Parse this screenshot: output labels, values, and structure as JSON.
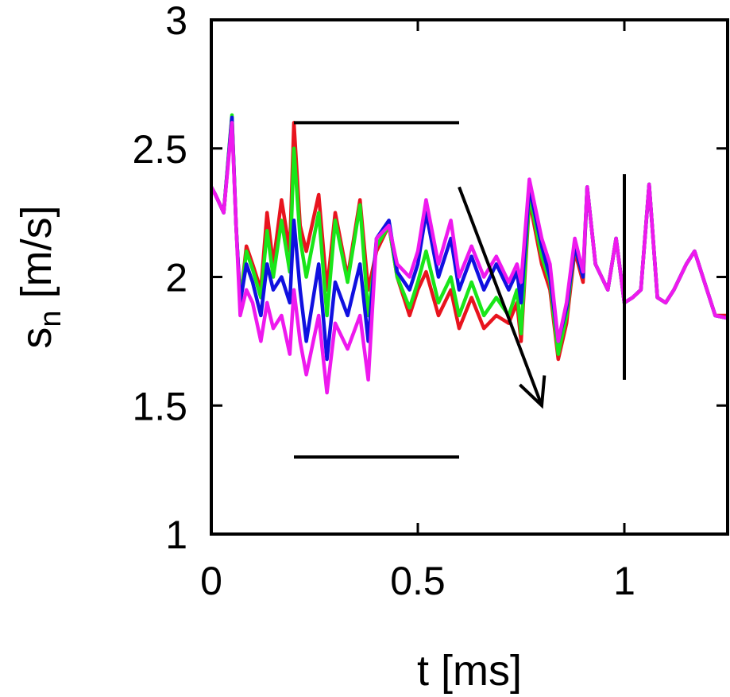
{
  "chart_data": {
    "type": "line",
    "xlabel": "t [ms]",
    "ylabel": {
      "main": "s",
      "subscript": "n",
      "unit": " [m/s]"
    },
    "xlim": [
      0,
      1.25
    ],
    "ylim": [
      1,
      3
    ],
    "xticks": [
      {
        "value": 0,
        "label": "0"
      },
      {
        "value": 0.5,
        "label": "0.5"
      },
      {
        "value": 1,
        "label": "1"
      }
    ],
    "yticks": [
      {
        "value": 1,
        "label": "1"
      },
      {
        "value": 1.5,
        "label": "1.5"
      },
      {
        "value": 2,
        "label": "2"
      },
      {
        "value": 2.5,
        "label": "2.5"
      },
      {
        "value": 3,
        "label": "3"
      }
    ],
    "grid": false,
    "legend": "none",
    "series": [
      {
        "color": "#e8141e",
        "x": [
          0,
          0.01,
          0.03,
          0.05,
          0.06,
          0.07,
          0.085,
          0.1,
          0.12,
          0.135,
          0.15,
          0.17,
          0.19,
          0.2,
          0.215,
          0.23,
          0.26,
          0.28,
          0.3,
          0.33,
          0.36,
          0.38,
          0.4,
          0.43,
          0.45,
          0.48,
          0.5,
          0.52,
          0.55,
          0.58,
          0.6,
          0.63,
          0.66,
          0.69,
          0.72,
          0.74,
          0.75,
          0.77,
          0.8,
          0.82,
          0.84,
          0.86,
          0.88,
          0.9,
          0.91,
          0.93,
          0.96,
          0.98,
          1.0,
          1.02,
          1.04,
          1.06,
          1.08,
          1.1,
          1.12,
          1.15,
          1.17,
          1.2,
          1.22,
          1.25
        ],
        "y": [
          2.35,
          2.32,
          2.25,
          2.62,
          2.2,
          1.9,
          2.12,
          2.05,
          1.95,
          2.25,
          2.05,
          2.3,
          2.1,
          2.6,
          2.2,
          2.1,
          2.32,
          1.95,
          2.25,
          2.0,
          2.3,
          1.95,
          2.1,
          2.2,
          2.0,
          1.85,
          1.95,
          2.02,
          1.85,
          1.95,
          1.8,
          1.92,
          1.8,
          1.85,
          1.82,
          1.9,
          1.75,
          2.3,
          2.05,
          1.95,
          1.68,
          1.82,
          2.1,
          1.98,
          2.35,
          2.05,
          1.95,
          2.15,
          1.9,
          1.92,
          1.95,
          2.36,
          1.92,
          1.9,
          1.95,
          2.05,
          2.1,
          1.95,
          1.85,
          1.85
        ]
      },
      {
        "color": "#19e619",
        "x": [
          0,
          0.01,
          0.03,
          0.05,
          0.06,
          0.07,
          0.085,
          0.1,
          0.12,
          0.135,
          0.15,
          0.17,
          0.19,
          0.2,
          0.215,
          0.23,
          0.26,
          0.28,
          0.3,
          0.33,
          0.36,
          0.38,
          0.4,
          0.43,
          0.45,
          0.48,
          0.5,
          0.52,
          0.55,
          0.58,
          0.6,
          0.63,
          0.66,
          0.69,
          0.72,
          0.74,
          0.75,
          0.77,
          0.8,
          0.82,
          0.84,
          0.86,
          0.88,
          0.9,
          0.91,
          0.93,
          0.96,
          0.98,
          1.0,
          1.02,
          1.04,
          1.06,
          1.08,
          1.1,
          1.12,
          1.15,
          1.17,
          1.2,
          1.22,
          1.25
        ],
        "y": [
          2.35,
          2.32,
          2.25,
          2.63,
          2.2,
          1.9,
          2.1,
          2.03,
          1.92,
          2.18,
          2.0,
          2.22,
          2.02,
          2.5,
          2.15,
          2.0,
          2.25,
          1.85,
          2.22,
          1.98,
          2.28,
          1.85,
          2.12,
          2.2,
          2.0,
          1.88,
          1.98,
          2.1,
          1.9,
          2.0,
          1.85,
          1.98,
          1.85,
          1.92,
          1.85,
          1.95,
          1.78,
          2.32,
          2.08,
          1.98,
          1.7,
          1.85,
          2.12,
          2.0,
          2.35,
          2.05,
          1.95,
          2.15,
          1.9,
          1.92,
          1.95,
          2.36,
          1.92,
          1.9,
          1.95,
          2.05,
          2.1,
          1.95,
          1.85,
          1.84
        ]
      },
      {
        "color": "#1010e0",
        "x": [
          0,
          0.01,
          0.03,
          0.05,
          0.06,
          0.07,
          0.085,
          0.1,
          0.12,
          0.135,
          0.15,
          0.17,
          0.19,
          0.2,
          0.215,
          0.23,
          0.26,
          0.28,
          0.3,
          0.33,
          0.36,
          0.38,
          0.4,
          0.43,
          0.45,
          0.48,
          0.5,
          0.52,
          0.55,
          0.58,
          0.6,
          0.63,
          0.66,
          0.69,
          0.72,
          0.74,
          0.75,
          0.77,
          0.8,
          0.82,
          0.84,
          0.86,
          0.88,
          0.9,
          0.91,
          0.93,
          0.96,
          0.98,
          1.0,
          1.02,
          1.04,
          1.06,
          1.08,
          1.1,
          1.12,
          1.15,
          1.17,
          1.2,
          1.22,
          1.25
        ],
        "y": [
          2.35,
          2.32,
          2.25,
          2.62,
          2.2,
          1.9,
          2.05,
          1.98,
          1.85,
          2.05,
          1.95,
          2.0,
          1.9,
          2.22,
          1.95,
          1.75,
          2.05,
          1.68,
          1.98,
          1.85,
          2.05,
          1.75,
          2.15,
          2.22,
          2.02,
          1.95,
          2.05,
          2.25,
          2.0,
          2.15,
          1.95,
          2.08,
          1.95,
          2.05,
          1.95,
          2.02,
          1.9,
          2.35,
          2.12,
          2.0,
          1.75,
          1.88,
          2.12,
          2.0,
          2.35,
          2.05,
          1.95,
          2.15,
          1.9,
          1.92,
          1.95,
          2.36,
          1.92,
          1.9,
          1.95,
          2.05,
          2.1,
          1.95,
          1.85,
          1.84
        ]
      },
      {
        "color": "#ee19ee",
        "x": [
          0,
          0.01,
          0.03,
          0.05,
          0.06,
          0.07,
          0.085,
          0.1,
          0.12,
          0.135,
          0.15,
          0.17,
          0.19,
          0.2,
          0.215,
          0.23,
          0.26,
          0.28,
          0.3,
          0.33,
          0.36,
          0.38,
          0.4,
          0.43,
          0.45,
          0.48,
          0.5,
          0.52,
          0.55,
          0.58,
          0.6,
          0.63,
          0.66,
          0.69,
          0.72,
          0.74,
          0.75,
          0.77,
          0.8,
          0.82,
          0.84,
          0.86,
          0.88,
          0.9,
          0.91,
          0.93,
          0.96,
          0.98,
          1.0,
          1.02,
          1.04,
          1.06,
          1.08,
          1.1,
          1.12,
          1.15,
          1.17,
          1.2,
          1.22,
          1.25
        ],
        "y": [
          2.35,
          2.32,
          2.25,
          2.6,
          2.2,
          1.85,
          1.95,
          1.9,
          1.75,
          1.9,
          1.8,
          1.85,
          1.7,
          1.95,
          1.75,
          1.62,
          1.85,
          1.55,
          1.82,
          1.72,
          1.85,
          1.6,
          2.15,
          2.2,
          2.05,
          2.0,
          2.1,
          2.3,
          2.05,
          2.22,
          2.0,
          2.12,
          2.0,
          2.08,
          1.98,
          2.05,
          1.98,
          2.38,
          2.15,
          2.05,
          1.75,
          1.9,
          2.15,
          2.02,
          2.35,
          2.05,
          1.95,
          2.15,
          1.9,
          1.92,
          1.95,
          2.36,
          1.92,
          1.9,
          1.95,
          2.05,
          2.1,
          1.95,
          1.85,
          1.84
        ]
      }
    ],
    "annotations": [
      {
        "kind": "hline",
        "y": 2.6,
        "x_from": 0.2,
        "x_to": 0.6
      },
      {
        "kind": "hline",
        "y": 1.3,
        "x_from": 0.2,
        "x_to": 0.6
      },
      {
        "kind": "vline",
        "x": 1.0,
        "y_from": 1.6,
        "y_to": 2.4
      },
      {
        "kind": "arrow",
        "x_from": 0.6,
        "y_from": 2.35,
        "x_to": 0.8,
        "y_to": 1.5
      }
    ]
  }
}
